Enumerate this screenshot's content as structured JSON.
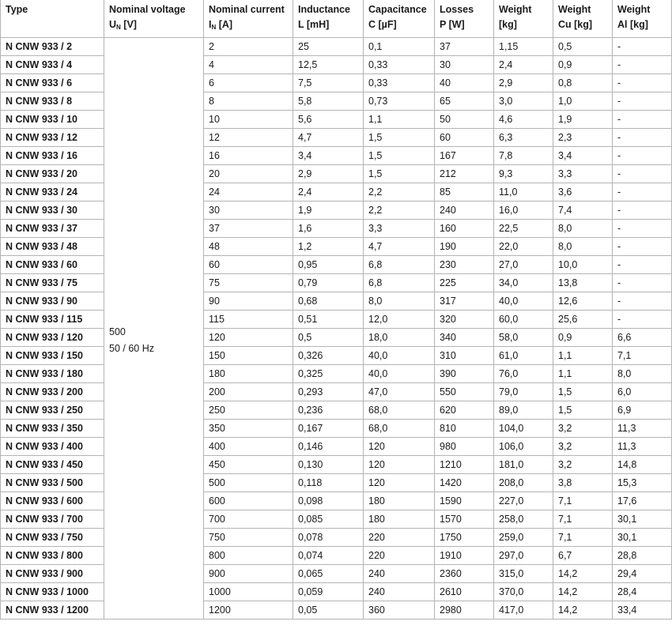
{
  "columns": [
    {
      "line1": "Type",
      "line2": ""
    },
    {
      "line1": "Nominal voltage",
      "line2_main": "U",
      "line2_sub": "N",
      "line2_rest": " [V]"
    },
    {
      "line1": "Nominal current",
      "line2_main": "I",
      "line2_sub": "N",
      "line2_rest": " [A]"
    },
    {
      "line1": "Inductance",
      "line2": "L [mH]"
    },
    {
      "line1": "Capacitance",
      "line2": "C [µF]"
    },
    {
      "line1": "Losses",
      "line2": "P [W]"
    },
    {
      "line1": "Weight",
      "line2": "[kg]"
    },
    {
      "line1": "Weight",
      "line2": "Cu [kg]"
    },
    {
      "line1": "Weight",
      "line2": "Al [kg]"
    }
  ],
  "voltage": {
    "line1": "500",
    "line2": "50 / 60 Hz"
  },
  "rows": [
    [
      "N CNW 933 / 2",
      "2",
      "25",
      "0,1",
      "37",
      "1,15",
      "0,5",
      "-"
    ],
    [
      "N CNW 933 / 4",
      "4",
      "12,5",
      "0,33",
      "30",
      "2,4",
      "0,9",
      "-"
    ],
    [
      "N CNW 933 / 6",
      "6",
      "7,5",
      "0,33",
      "40",
      "2,9",
      "0,8",
      "-"
    ],
    [
      "N CNW 933 / 8",
      "8",
      "5,8",
      "0,73",
      "65",
      "3,0",
      "1,0",
      "-"
    ],
    [
      "N CNW 933 / 10",
      "10",
      "5,6",
      "1,1",
      "50",
      "4,6",
      "1,9",
      "-"
    ],
    [
      "N CNW 933 / 12",
      "12",
      "4,7",
      "1,5",
      "60",
      "6,3",
      "2,3",
      "-"
    ],
    [
      "N CNW 933 / 16",
      "16",
      "3,4",
      "1,5",
      "167",
      "7,8",
      "3,4",
      "-"
    ],
    [
      "N CNW 933 / 20",
      "20",
      "2,9",
      "1,5",
      "212",
      "9,3",
      "3,3",
      "-"
    ],
    [
      "N CNW 933 / 24",
      "24",
      "2,4",
      "2,2",
      "85",
      "11,0",
      "3,6",
      "-"
    ],
    [
      "N CNW 933 / 30",
      "30",
      "1,9",
      "2,2",
      "240",
      "16,0",
      "7,4",
      "-"
    ],
    [
      "N CNW 933 / 37",
      "37",
      "1,6",
      "3,3",
      "160",
      "22,5",
      "8,0",
      "-"
    ],
    [
      "N CNW 933 / 48",
      "48",
      "1,2",
      "4,7",
      "190",
      "22,0",
      "8,0",
      "-"
    ],
    [
      "N CNW 933 / 60",
      "60",
      "0,95",
      "6,8",
      "230",
      "27,0",
      "10,0",
      "-"
    ],
    [
      "N CNW 933 / 75",
      "75",
      "0,79",
      "6,8",
      "225",
      "34,0",
      "13,8",
      "-"
    ],
    [
      "N CNW 933 / 90",
      "90",
      "0,68",
      "8,0",
      "317",
      "40,0",
      "12,6",
      "-"
    ],
    [
      "N CNW 933 / 115",
      "115",
      "0,51",
      "12,0",
      "320",
      "60,0",
      "25,6",
      "-"
    ],
    [
      "N CNW 933 / 120",
      "120",
      "0,5",
      "18,0",
      "340",
      "58,0",
      "0,9",
      "6,6"
    ],
    [
      "N CNW 933 / 150",
      "150",
      "0,326",
      "40,0",
      "310",
      "61,0",
      "1,1",
      "7,1"
    ],
    [
      "N CNW 933 / 180",
      "180",
      "0,325",
      "40,0",
      "390",
      "76,0",
      "1,1",
      "8,0"
    ],
    [
      "N CNW 933 / 200",
      "200",
      "0,293",
      "47,0",
      "550",
      "79,0",
      "1,5",
      "6,0"
    ],
    [
      "N CNW 933 / 250",
      "250",
      "0,236",
      "68,0",
      "620",
      "89,0",
      "1,5",
      "6,9"
    ],
    [
      "N CNW 933 / 350",
      "350",
      "0,167",
      "68,0",
      "810",
      "104,0",
      "3,2",
      "11,3"
    ],
    [
      "N CNW 933 / 400",
      "400",
      "0,146",
      "120",
      "980",
      "106,0",
      "3,2",
      "11,3"
    ],
    [
      "N CNW 933 / 450",
      "450",
      "0,130",
      "120",
      "1210",
      "181,0",
      "3,2",
      "14,8"
    ],
    [
      "N CNW 933 / 500",
      "500",
      "0,118",
      "120",
      "1420",
      "208,0",
      "3,8",
      "15,3"
    ],
    [
      "N CNW 933 / 600",
      "600",
      "0,098",
      "180",
      "1590",
      "227,0",
      "7,1",
      "17,6"
    ],
    [
      "N CNW 933 / 700",
      "700",
      "0,085",
      "180",
      "1570",
      "258,0",
      "7,1",
      "30,1"
    ],
    [
      "N CNW 933 / 750",
      "750",
      "0,078",
      "220",
      "1750",
      "259,0",
      "7,1",
      "30,1"
    ],
    [
      "N CNW 933 / 800",
      "800",
      "0,074",
      "220",
      "1910",
      "297,0",
      "6,7",
      "28,8"
    ],
    [
      "N CNW 933 / 900",
      "900",
      "0,065",
      "240",
      "2360",
      "315,0",
      "14,2",
      "29,4"
    ],
    [
      "N CNW 933 / 1000",
      "1000",
      "0,059",
      "240",
      "2610",
      "370,0",
      "14,2",
      "28,4"
    ],
    [
      "N CNW 933 / 1200",
      "1200",
      "0,05",
      "360",
      "2980",
      "417,0",
      "14,2",
      "33,4"
    ]
  ]
}
